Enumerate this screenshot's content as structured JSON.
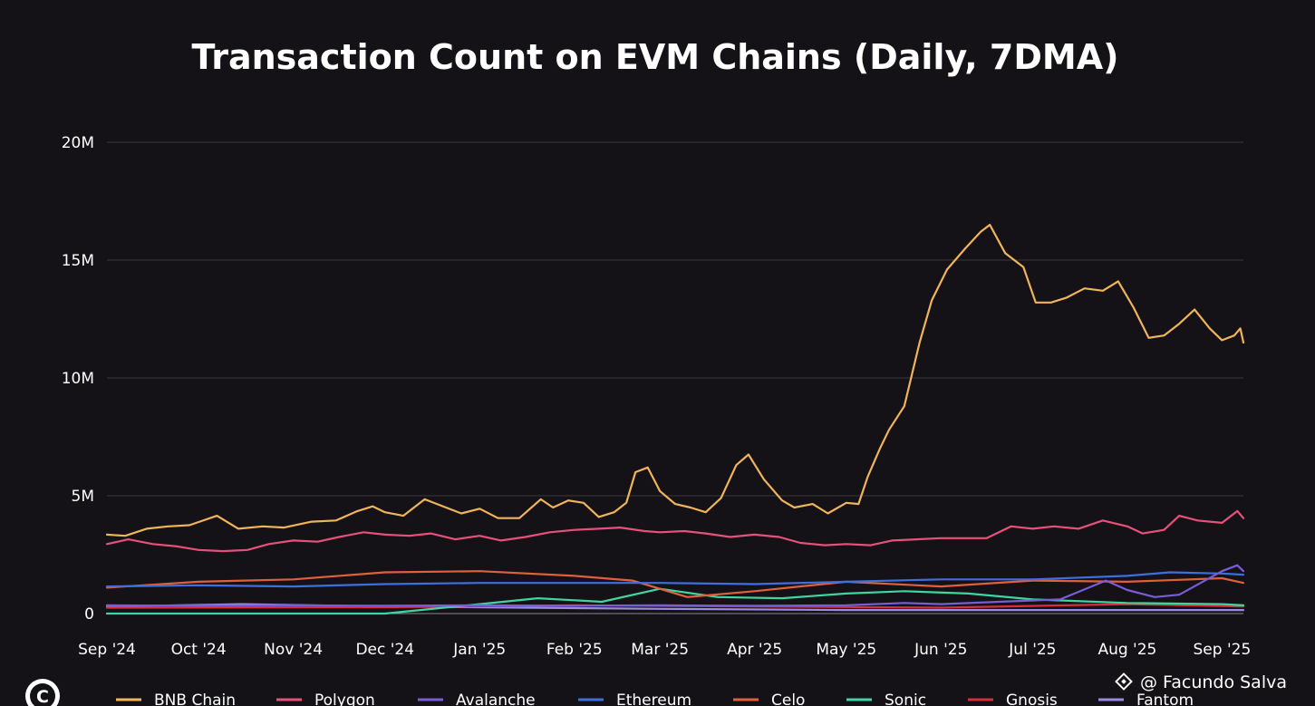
{
  "chart_data": {
    "type": "line",
    "title": "Transaction Count on EVM Chains (Daily, 7DMA)",
    "xlabel": "",
    "ylabel": "",
    "ylim": [
      0,
      20000000
    ],
    "yticks": [
      {
        "value": 0,
        "label": "0"
      },
      {
        "value": 5000000,
        "label": "5M"
      },
      {
        "value": 10000000,
        "label": "10M"
      },
      {
        "value": 15000000,
        "label": "15M"
      },
      {
        "value": 20000000,
        "label": "20M"
      }
    ],
    "xlim": [
      "2024-09-01",
      "2025-09-08"
    ],
    "xticks": [
      {
        "value": "2024-09-01",
        "label": "Sep '24"
      },
      {
        "value": "2024-10-01",
        "label": "Oct '24"
      },
      {
        "value": "2024-11-01",
        "label": "Nov '24"
      },
      {
        "value": "2024-12-01",
        "label": "Dec '24"
      },
      {
        "value": "2025-01-01",
        "label": "Jan '25"
      },
      {
        "value": "2025-02-01",
        "label": "Feb '25"
      },
      {
        "value": "2025-03-01",
        "label": "Mar '25"
      },
      {
        "value": "2025-04-01",
        "label": "Apr '25"
      },
      {
        "value": "2025-05-01",
        "label": "May '25"
      },
      {
        "value": "2025-06-01",
        "label": "Jun '25"
      },
      {
        "value": "2025-07-01",
        "label": "Jul '25"
      },
      {
        "value": "2025-08-01",
        "label": "Aug '25"
      },
      {
        "value": "2025-09-01",
        "label": "Sep '25"
      }
    ],
    "grid": true,
    "legend_position": "bottom",
    "series": [
      {
        "name": "BNB Chain",
        "color": "#f0b45a",
        "points": [
          [
            "2024-09-01",
            3350000
          ],
          [
            "2024-09-07",
            3300000
          ],
          [
            "2024-09-14",
            3600000
          ],
          [
            "2024-09-21",
            3700000
          ],
          [
            "2024-09-28",
            3750000
          ],
          [
            "2024-10-07",
            4150000
          ],
          [
            "2024-10-14",
            3600000
          ],
          [
            "2024-10-22",
            3700000
          ],
          [
            "2024-10-29",
            3650000
          ],
          [
            "2024-11-07",
            3900000
          ],
          [
            "2024-11-15",
            3950000
          ],
          [
            "2024-11-22",
            4350000
          ],
          [
            "2024-11-27",
            4550000
          ],
          [
            "2024-12-01",
            4300000
          ],
          [
            "2024-12-07",
            4150000
          ],
          [
            "2024-12-14",
            4850000
          ],
          [
            "2024-12-19",
            4600000
          ],
          [
            "2024-12-26",
            4250000
          ],
          [
            "2025-01-01",
            4450000
          ],
          [
            "2025-01-07",
            4050000
          ],
          [
            "2025-01-14",
            4050000
          ],
          [
            "2025-01-21",
            4850000
          ],
          [
            "2025-01-25",
            4500000
          ],
          [
            "2025-01-30",
            4800000
          ],
          [
            "2025-02-04",
            4700000
          ],
          [
            "2025-02-09",
            4100000
          ],
          [
            "2025-02-14",
            4300000
          ],
          [
            "2025-02-18",
            4700000
          ],
          [
            "2025-02-21",
            6000000
          ],
          [
            "2025-02-25",
            6200000
          ],
          [
            "2025-03-01",
            5200000
          ],
          [
            "2025-03-06",
            4650000
          ],
          [
            "2025-03-11",
            4500000
          ],
          [
            "2025-03-16",
            4300000
          ],
          [
            "2025-03-21",
            4900000
          ],
          [
            "2025-03-26",
            6300000
          ],
          [
            "2025-03-30",
            6750000
          ],
          [
            "2025-04-04",
            5700000
          ],
          [
            "2025-04-10",
            4800000
          ],
          [
            "2025-04-14",
            4500000
          ],
          [
            "2025-04-20",
            4650000
          ],
          [
            "2025-04-25",
            4250000
          ],
          [
            "2025-05-01",
            4700000
          ],
          [
            "2025-05-05",
            4650000
          ],
          [
            "2025-05-08",
            5800000
          ],
          [
            "2025-05-12",
            7000000
          ],
          [
            "2025-05-15",
            7800000
          ],
          [
            "2025-05-20",
            8800000
          ],
          [
            "2025-05-25",
            11500000
          ],
          [
            "2025-05-29",
            13300000
          ],
          [
            "2025-06-03",
            14600000
          ],
          [
            "2025-06-09",
            15500000
          ],
          [
            "2025-06-14",
            16200000
          ],
          [
            "2025-06-17",
            16500000
          ],
          [
            "2025-06-22",
            15300000
          ],
          [
            "2025-06-28",
            14700000
          ],
          [
            "2025-07-02",
            13200000
          ],
          [
            "2025-07-07",
            13200000
          ],
          [
            "2025-07-12",
            13400000
          ],
          [
            "2025-07-18",
            13800000
          ],
          [
            "2025-07-24",
            13700000
          ],
          [
            "2025-07-29",
            14100000
          ],
          [
            "2025-08-03",
            13000000
          ],
          [
            "2025-08-08",
            11700000
          ],
          [
            "2025-08-13",
            11800000
          ],
          [
            "2025-08-18",
            12300000
          ],
          [
            "2025-08-23",
            12900000
          ],
          [
            "2025-08-28",
            12100000
          ],
          [
            "2025-09-01",
            11600000
          ],
          [
            "2025-09-05",
            11800000
          ],
          [
            "2025-09-07",
            12100000
          ],
          [
            "2025-09-08",
            11500000
          ]
        ]
      },
      {
        "name": "Polygon",
        "color": "#e8507c",
        "points": [
          [
            "2024-09-01",
            2950000
          ],
          [
            "2024-09-08",
            3150000
          ],
          [
            "2024-09-16",
            2950000
          ],
          [
            "2024-09-24",
            2850000
          ],
          [
            "2024-10-01",
            2700000
          ],
          [
            "2024-10-09",
            2650000
          ],
          [
            "2024-10-17",
            2700000
          ],
          [
            "2024-10-24",
            2950000
          ],
          [
            "2024-11-01",
            3100000
          ],
          [
            "2024-11-09",
            3050000
          ],
          [
            "2024-11-16",
            3250000
          ],
          [
            "2024-11-24",
            3450000
          ],
          [
            "2024-12-01",
            3350000
          ],
          [
            "2024-12-09",
            3300000
          ],
          [
            "2024-12-16",
            3400000
          ],
          [
            "2024-12-24",
            3150000
          ],
          [
            "2025-01-01",
            3300000
          ],
          [
            "2025-01-08",
            3100000
          ],
          [
            "2025-01-16",
            3250000
          ],
          [
            "2025-01-24",
            3450000
          ],
          [
            "2025-02-01",
            3550000
          ],
          [
            "2025-02-09",
            3600000
          ],
          [
            "2025-02-16",
            3650000
          ],
          [
            "2025-02-24",
            3500000
          ],
          [
            "2025-03-01",
            3450000
          ],
          [
            "2025-03-09",
            3500000
          ],
          [
            "2025-03-16",
            3400000
          ],
          [
            "2025-03-24",
            3250000
          ],
          [
            "2025-04-01",
            3350000
          ],
          [
            "2025-04-09",
            3250000
          ],
          [
            "2025-04-16",
            3000000
          ],
          [
            "2025-04-24",
            2900000
          ],
          [
            "2025-05-01",
            2950000
          ],
          [
            "2025-05-09",
            2900000
          ],
          [
            "2025-05-16",
            3100000
          ],
          [
            "2025-05-24",
            3150000
          ],
          [
            "2025-06-01",
            3200000
          ],
          [
            "2025-06-09",
            3200000
          ],
          [
            "2025-06-16",
            3200000
          ],
          [
            "2025-06-24",
            3700000
          ],
          [
            "2025-07-01",
            3600000
          ],
          [
            "2025-07-08",
            3700000
          ],
          [
            "2025-07-16",
            3600000
          ],
          [
            "2025-07-24",
            3950000
          ],
          [
            "2025-08-01",
            3700000
          ],
          [
            "2025-08-06",
            3400000
          ],
          [
            "2025-08-13",
            3550000
          ],
          [
            "2025-08-18",
            4150000
          ],
          [
            "2025-08-24",
            3950000
          ],
          [
            "2025-09-01",
            3850000
          ],
          [
            "2025-09-06",
            4350000
          ],
          [
            "2025-09-08",
            4050000
          ]
        ]
      },
      {
        "name": "Avalanche",
        "color": "#7a5cd6",
        "points": [
          [
            "2024-09-01",
            350000
          ],
          [
            "2024-10-01",
            330000
          ],
          [
            "2024-11-01",
            350000
          ],
          [
            "2024-12-01",
            330000
          ],
          [
            "2025-01-01",
            350000
          ],
          [
            "2025-02-01",
            330000
          ],
          [
            "2025-03-01",
            350000
          ],
          [
            "2025-04-01",
            330000
          ],
          [
            "2025-05-01",
            350000
          ],
          [
            "2025-05-20",
            450000
          ],
          [
            "2025-06-01",
            400000
          ],
          [
            "2025-06-20",
            500000
          ],
          [
            "2025-07-10",
            600000
          ],
          [
            "2025-07-25",
            1400000
          ],
          [
            "2025-08-01",
            1000000
          ],
          [
            "2025-08-10",
            700000
          ],
          [
            "2025-08-18",
            800000
          ],
          [
            "2025-08-25",
            1300000
          ],
          [
            "2025-09-01",
            1800000
          ],
          [
            "2025-09-06",
            2050000
          ],
          [
            "2025-09-08",
            1800000
          ]
        ]
      },
      {
        "name": "Ethereum",
        "color": "#3e6fe0",
        "points": [
          [
            "2024-09-01",
            1150000
          ],
          [
            "2024-10-01",
            1200000
          ],
          [
            "2024-11-01",
            1150000
          ],
          [
            "2024-12-01",
            1250000
          ],
          [
            "2025-01-01",
            1300000
          ],
          [
            "2025-02-01",
            1300000
          ],
          [
            "2025-03-01",
            1300000
          ],
          [
            "2025-04-01",
            1250000
          ],
          [
            "2025-05-01",
            1350000
          ],
          [
            "2025-06-01",
            1450000
          ],
          [
            "2025-07-01",
            1450000
          ],
          [
            "2025-08-01",
            1600000
          ],
          [
            "2025-08-15",
            1750000
          ],
          [
            "2025-09-01",
            1700000
          ],
          [
            "2025-09-08",
            1650000
          ]
        ]
      },
      {
        "name": "Celo",
        "color": "#e0603c",
        "points": [
          [
            "2024-09-01",
            1100000
          ],
          [
            "2024-10-01",
            1350000
          ],
          [
            "2024-11-01",
            1450000
          ],
          [
            "2024-12-01",
            1750000
          ],
          [
            "2025-01-01",
            1800000
          ],
          [
            "2025-02-01",
            1600000
          ],
          [
            "2025-02-20",
            1400000
          ],
          [
            "2025-03-10",
            700000
          ],
          [
            "2025-04-01",
            950000
          ],
          [
            "2025-05-01",
            1350000
          ],
          [
            "2025-06-01",
            1150000
          ],
          [
            "2025-07-01",
            1400000
          ],
          [
            "2025-08-01",
            1350000
          ],
          [
            "2025-09-01",
            1500000
          ],
          [
            "2025-09-08",
            1300000
          ]
        ]
      },
      {
        "name": "Sonic",
        "color": "#3ed6a0",
        "points": [
          [
            "2024-09-01",
            0
          ],
          [
            "2024-12-01",
            0
          ],
          [
            "2025-01-01",
            400000
          ],
          [
            "2025-01-20",
            650000
          ],
          [
            "2025-02-10",
            500000
          ],
          [
            "2025-03-01",
            1050000
          ],
          [
            "2025-03-20",
            700000
          ],
          [
            "2025-04-10",
            650000
          ],
          [
            "2025-05-01",
            850000
          ],
          [
            "2025-05-20",
            950000
          ],
          [
            "2025-06-10",
            850000
          ],
          [
            "2025-07-01",
            600000
          ],
          [
            "2025-08-01",
            450000
          ],
          [
            "2025-09-01",
            400000
          ],
          [
            "2025-09-08",
            350000
          ]
        ]
      },
      {
        "name": "Gnosis",
        "color": "#d62e3a",
        "points": [
          [
            "2024-09-01",
            250000
          ],
          [
            "2024-12-01",
            270000
          ],
          [
            "2025-02-01",
            350000
          ],
          [
            "2025-04-01",
            300000
          ],
          [
            "2025-06-01",
            250000
          ],
          [
            "2025-08-01",
            400000
          ],
          [
            "2025-09-08",
            300000
          ]
        ]
      },
      {
        "name": "Fantom",
        "color": "#9a8ae0",
        "points": [
          [
            "2024-09-01",
            300000
          ],
          [
            "2024-10-15",
            400000
          ],
          [
            "2024-12-01",
            300000
          ],
          [
            "2025-01-15",
            250000
          ],
          [
            "2025-03-01",
            200000
          ],
          [
            "2025-05-01",
            150000
          ],
          [
            "2025-07-01",
            150000
          ],
          [
            "2025-09-08",
            150000
          ]
        ]
      }
    ]
  },
  "watermark": {
    "text": "@ Facundo Salva"
  },
  "logo": {
    "glyph": "C"
  }
}
